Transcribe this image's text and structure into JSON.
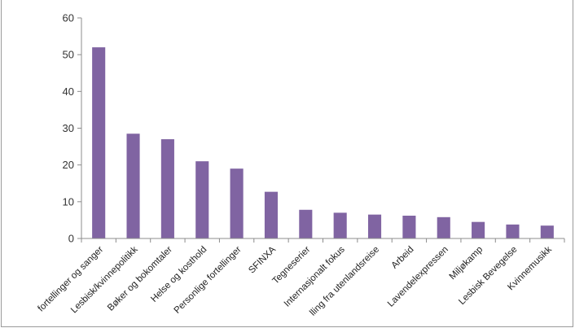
{
  "chart_data": {
    "type": "bar",
    "title": "",
    "xlabel": "",
    "ylabel": "",
    "ylim": [
      0,
      60
    ],
    "yticks": [
      0,
      10,
      20,
      30,
      40,
      50,
      60
    ],
    "grid": false,
    "legend": "none",
    "bar_color": "#8064a2",
    "categories": [
      "fortellinger og sanger",
      "Lesbisk/kvinnepolitikk",
      "Bøker og bokomtaler",
      "Helse og kosthold",
      "Personlige fortellinger",
      "SFINXA",
      "Tegneserier",
      "Internasjonalt fokus",
      "lling fra utenlandsreise",
      "Arbeid",
      "Lavendelexpressen",
      "Miljøkamp",
      "Lesbisk Bevegelse",
      "Kvinnemusikk"
    ],
    "values": [
      52,
      28.5,
      27,
      21,
      19,
      12.7,
      7.8,
      7,
      6.5,
      6.2,
      5.8,
      4.5,
      3.8,
      3.5
    ]
  }
}
